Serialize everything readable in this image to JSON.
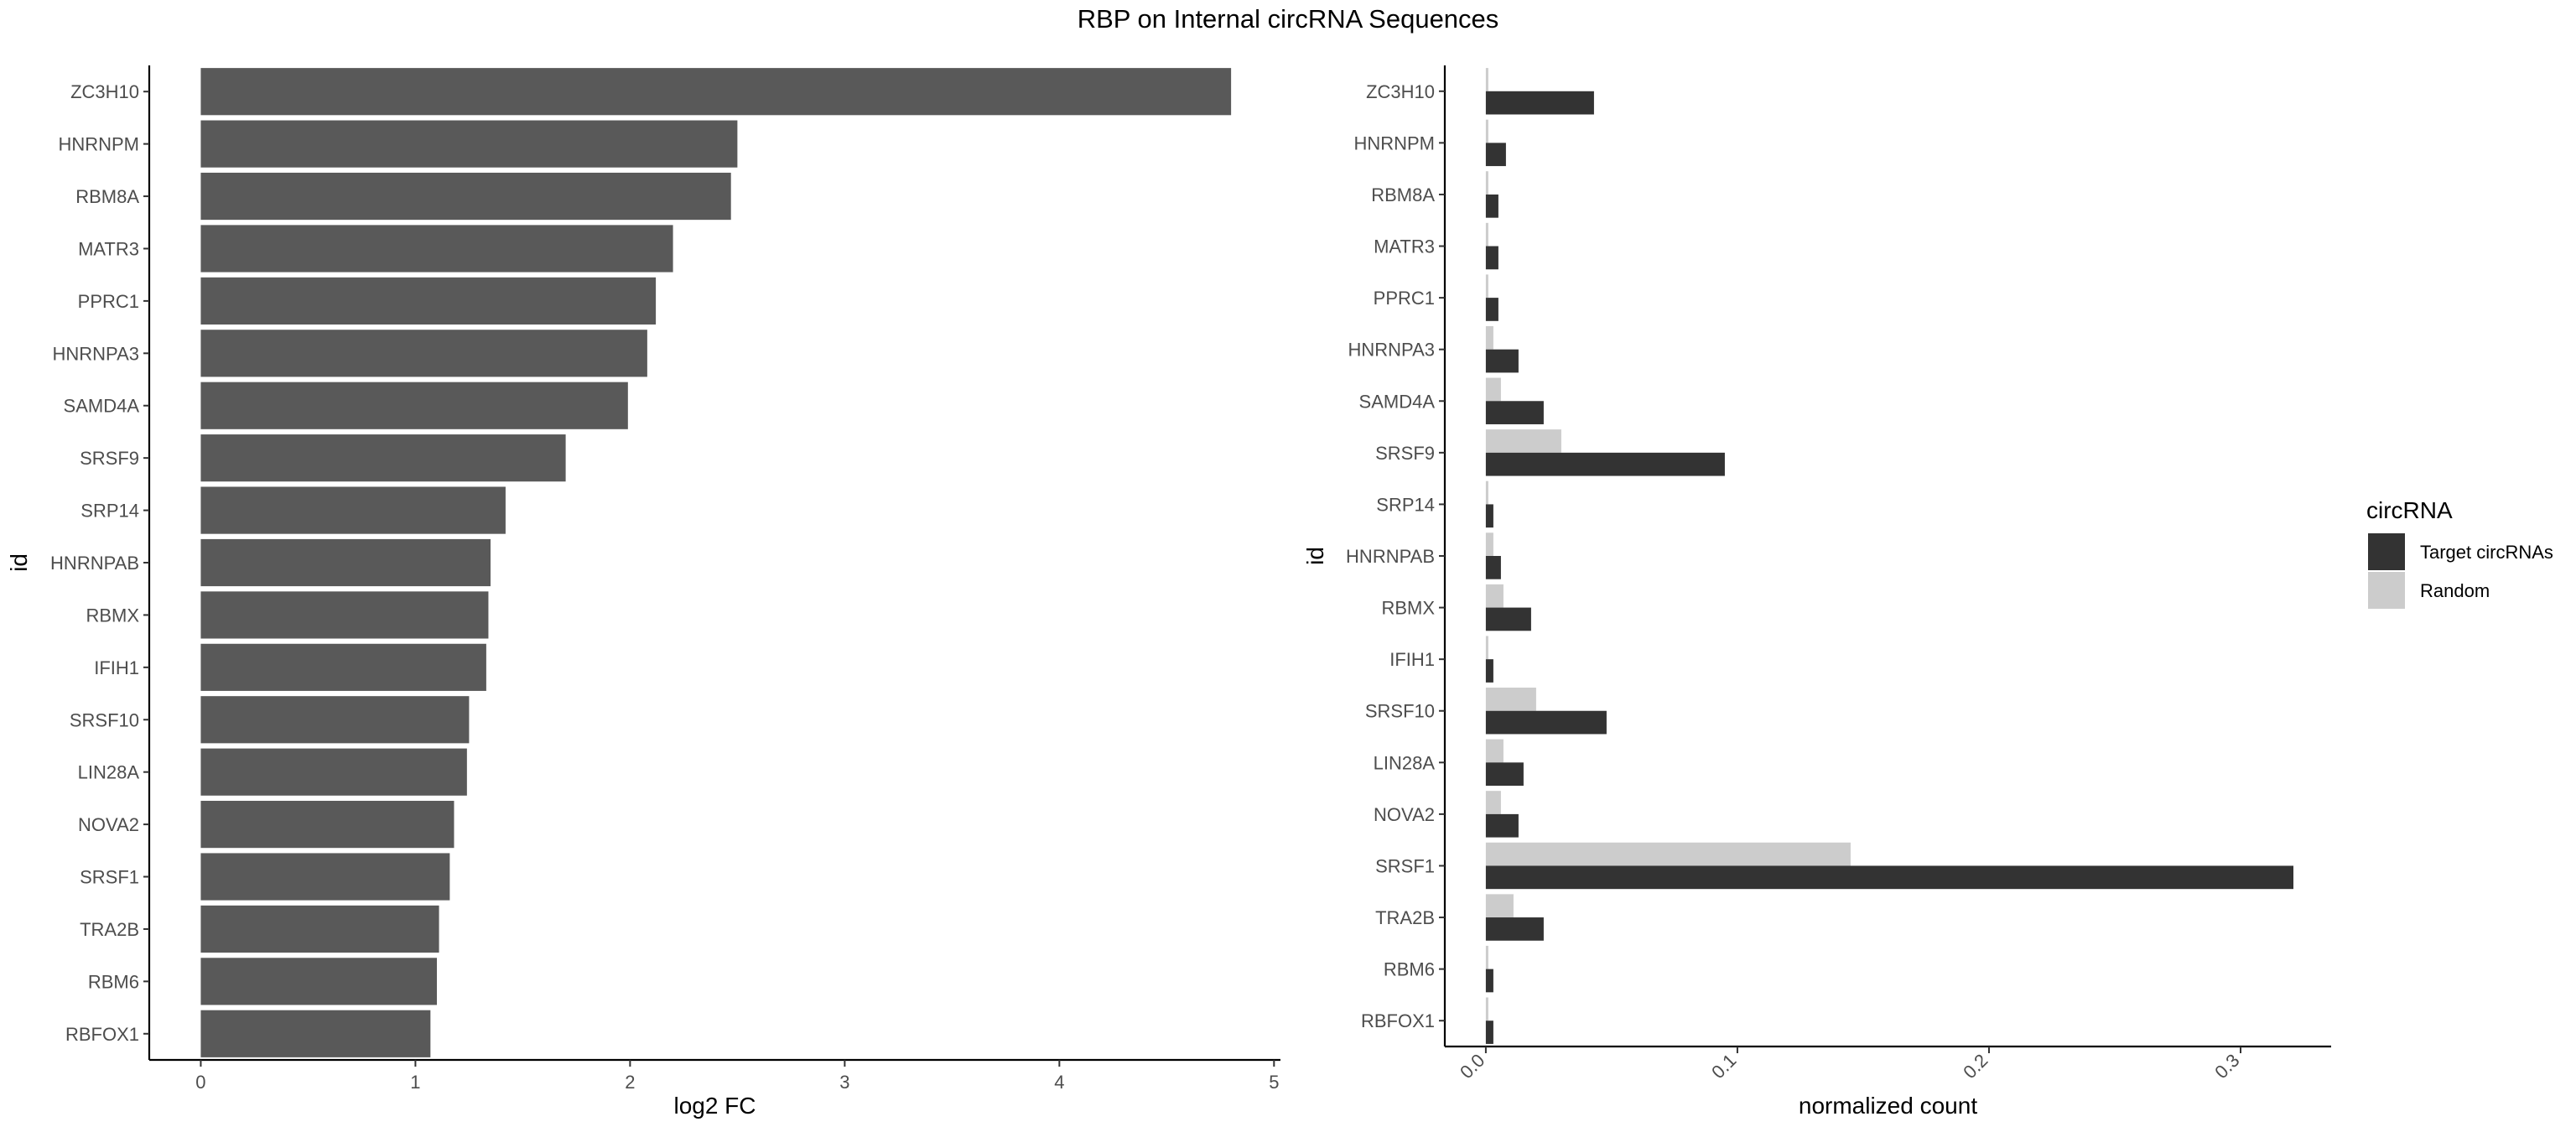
{
  "title": "RBP on Internal circRNA Sequences",
  "chart_data": [
    {
      "type": "bar",
      "orientation": "horizontal",
      "categories": [
        "ZC3H10",
        "HNRNPM",
        "RBM8A",
        "MATR3",
        "PPRC1",
        "HNRNPA3",
        "SAMD4A",
        "SRSF9",
        "SRP14",
        "HNRNPAB",
        "RBMX",
        "IFIH1",
        "SRSF10",
        "LIN28A",
        "NOVA2",
        "SRSF1",
        "TRA2B",
        "RBM6",
        "RBFOX1"
      ],
      "values": [
        4.8,
        2.5,
        2.47,
        2.2,
        2.12,
        2.08,
        1.99,
        1.7,
        1.42,
        1.35,
        1.34,
        1.33,
        1.25,
        1.24,
        1.18,
        1.16,
        1.11,
        1.1,
        1.07
      ],
      "xlabel": "log2 FC",
      "ylabel": "id",
      "xlim": [
        -0.24,
        5.03
      ],
      "xticks": [
        "0",
        "1",
        "2",
        "3",
        "4",
        "5"
      ],
      "grid": false,
      "bar_color": "#595959"
    },
    {
      "type": "bar",
      "orientation": "horizontal",
      "categories": [
        "ZC3H10",
        "HNRNPM",
        "RBM8A",
        "MATR3",
        "PPRC1",
        "HNRNPA3",
        "SAMD4A",
        "SRSF9",
        "SRP14",
        "HNRNPAB",
        "RBMX",
        "IFIH1",
        "SRSF10",
        "LIN28A",
        "NOVA2",
        "SRSF1",
        "TRA2B",
        "RBM6",
        "RBFOX1"
      ],
      "series": [
        {
          "name": "Target circRNAs",
          "color": "#333333",
          "values": [
            0.043,
            0.008,
            0.005,
            0.005,
            0.005,
            0.013,
            0.023,
            0.095,
            0.003,
            0.006,
            0.018,
            0.003,
            0.048,
            0.015,
            0.013,
            0.321,
            0.023,
            0.003,
            0.003
          ]
        },
        {
          "name": "Random",
          "color": "#cccccc",
          "values": [
            0.001,
            0.001,
            0.001,
            0.001,
            0.001,
            0.003,
            0.006,
            0.03,
            0.001,
            0.003,
            0.007,
            0.001,
            0.02,
            0.007,
            0.006,
            0.145,
            0.011,
            0.001,
            0.001
          ]
        }
      ],
      "xlabel": "normalized count",
      "ylabel": "id",
      "xlim": [
        -0.0163,
        0.336
      ],
      "xticks": [
        "0.0",
        "0.1",
        "0.2",
        "0.3"
      ],
      "grid": false,
      "legend": {
        "title": "circRNA",
        "placement": "right"
      }
    }
  ]
}
